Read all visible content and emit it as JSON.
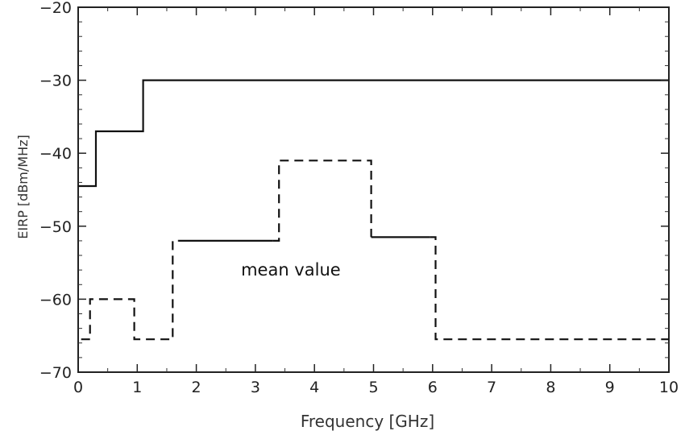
{
  "chart_data": {
    "type": "line",
    "title": "",
    "xlabel": "Frequency [GHz]",
    "ylabel": "EIRP [dBm/MHz]",
    "xlim": [
      0,
      10
    ],
    "ylim": [
      -70,
      -20
    ],
    "xticks": [
      0,
      1,
      2,
      3,
      4,
      5,
      6,
      7,
      8,
      9,
      10
    ],
    "yticks": [
      -70,
      -60,
      -50,
      -40,
      -30,
      -20
    ],
    "grid": false,
    "legend": "none",
    "annotations": [
      {
        "text": "mean value",
        "x": 3.6,
        "y": -56
      }
    ],
    "series": [
      {
        "style": "solid",
        "color": "#111111",
        "points": [
          [
            0,
            -44.5
          ],
          [
            0.3,
            -44.5
          ],
          [
            0.3,
            -37
          ],
          [
            1.1,
            -37
          ],
          [
            1.1,
            -30
          ],
          [
            10,
            -30
          ]
        ]
      },
      {
        "style": "solid",
        "color": "#111111",
        "points": [
          [
            1.7,
            -52
          ],
          [
            3.3,
            -52
          ]
        ]
      },
      {
        "style": "solid",
        "color": "#111111",
        "points": [
          [
            4.96,
            -51.5
          ],
          [
            5.95,
            -51.5
          ]
        ]
      },
      {
        "style": "dashed",
        "color": "#111111",
        "points": [
          [
            0.05,
            -65.5
          ],
          [
            0.2,
            -65.5
          ],
          [
            0.2,
            -60
          ],
          [
            0.95,
            -60
          ],
          [
            0.95,
            -65.5
          ],
          [
            1.6,
            -65.5
          ],
          [
            1.6,
            -52
          ],
          [
            1.7,
            -52
          ]
        ]
      },
      {
        "style": "dashed",
        "color": "#111111",
        "points": [
          [
            3.3,
            -52
          ],
          [
            3.4,
            -52
          ],
          [
            3.4,
            -41
          ],
          [
            4.96,
            -41
          ],
          [
            4.96,
            -51.5
          ]
        ]
      },
      {
        "style": "dashed",
        "color": "#111111",
        "points": [
          [
            5.95,
            -51.5
          ],
          [
            6.05,
            -51.5
          ],
          [
            6.05,
            -65.5
          ],
          [
            10,
            -65.5
          ]
        ]
      }
    ]
  }
}
